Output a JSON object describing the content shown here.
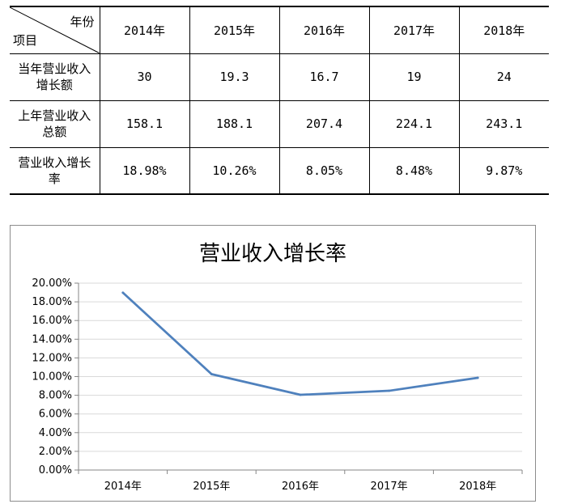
{
  "table": {
    "corner_top": "年份",
    "corner_bottom": "项目",
    "years": [
      "2014年",
      "2015年",
      "2016年",
      "2017年",
      "2018年"
    ],
    "rows": [
      {
        "label_lines": [
          "当年营业收入",
          "增长额"
        ],
        "values": [
          "30",
          "19.3",
          "16.7",
          "19",
          "24"
        ]
      },
      {
        "label_lines": [
          "上年营业收入",
          "总额"
        ],
        "values": [
          "158.1",
          "188.1",
          "207.4",
          "224.1",
          "243.1"
        ]
      },
      {
        "label_lines": [
          "营业收入增长",
          "率"
        ],
        "values": [
          "18.98%",
          "10.26%",
          "8.05%",
          "8.48%",
          "9.87%"
        ]
      }
    ]
  },
  "chart_data": {
    "type": "line",
    "title": "营业收入增长率",
    "categories": [
      "2014年",
      "2015年",
      "2016年",
      "2017年",
      "2018年"
    ],
    "series": [
      {
        "values": [
          0.1898,
          0.1026,
          0.0805,
          0.0848,
          0.0987
        ],
        "color": "#4f81bd"
      }
    ],
    "ylim": [
      0,
      0.2
    ],
    "ytick_step": 0.02,
    "ytick_labels": [
      "0.00%",
      "2.00%",
      "4.00%",
      "6.00%",
      "8.00%",
      "10.00%",
      "12.00%",
      "14.00%",
      "16.00%",
      "18.00%",
      "20.00%"
    ],
    "grid": true,
    "legend": false
  }
}
